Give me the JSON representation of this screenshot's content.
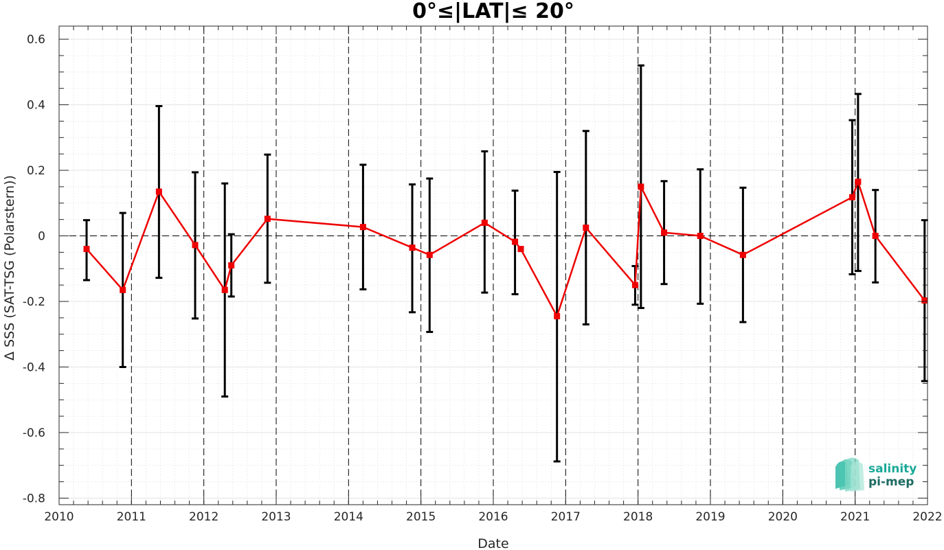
{
  "chart_data": {
    "type": "line",
    "title": "0°≤|LAT|≤ 20°",
    "xlabel": "Date",
    "ylabel": "Δ SSS (SAT-TSG (Polarstern))",
    "xlim": [
      2010,
      2022
    ],
    "ylim": [
      -0.82,
      0.64
    ],
    "x_ticks": [
      2010,
      2011,
      2012,
      2013,
      2014,
      2015,
      2016,
      2017,
      2018,
      2019,
      2020,
      2021,
      2022
    ],
    "y_ticks": [
      -0.8,
      -0.6,
      -0.4,
      -0.2,
      0,
      0.2,
      0.4,
      0.6
    ],
    "y_tick_labels": [
      "-0.8",
      "-0.6",
      "-0.4",
      "-0.2",
      "0",
      "0.2",
      "0.4",
      "0.6"
    ],
    "grid": true,
    "zero_line": true,
    "vertical_year_lines": true,
    "series": [
      {
        "color": "#ee0000",
        "marker": "square",
        "errorbar_color": "#000000",
        "points": [
          {
            "x": 2010.38,
            "y": -0.04,
            "lo": -0.135,
            "hi": 0.048
          },
          {
            "x": 2010.88,
            "y": -0.165,
            "lo": -0.4,
            "hi": 0.07
          },
          {
            "x": 2011.38,
            "y": 0.135,
            "lo": -0.128,
            "hi": 0.396
          },
          {
            "x": 2011.88,
            "y": -0.028,
            "lo": -0.252,
            "hi": 0.194
          },
          {
            "x": 2012.29,
            "y": -0.165,
            "lo": -0.49,
            "hi": 0.16
          },
          {
            "x": 2012.38,
            "y": -0.09,
            "lo": -0.185,
            "hi": 0.005
          },
          {
            "x": 2012.88,
            "y": 0.052,
            "lo": -0.143,
            "hi": 0.248
          },
          {
            "x": 2014.2,
            "y": 0.027,
            "lo": -0.163,
            "hi": 0.217
          },
          {
            "x": 2014.88,
            "y": -0.036,
            "lo": -0.233,
            "hi": 0.157
          },
          {
            "x": 2015.12,
            "y": -0.058,
            "lo": -0.293,
            "hi": 0.175
          },
          {
            "x": 2015.88,
            "y": 0.04,
            "lo": -0.173,
            "hi": 0.258
          },
          {
            "x": 2016.3,
            "y": -0.018,
            "lo": -0.178,
            "hi": 0.138
          },
          {
            "x": 2016.38,
            "y": -0.04,
            "lo": -0.04,
            "hi": -0.04
          },
          {
            "x": 2016.88,
            "y": -0.245,
            "lo": -0.688,
            "hi": 0.195
          },
          {
            "x": 2017.28,
            "y": 0.025,
            "lo": -0.27,
            "hi": 0.32
          },
          {
            "x": 2017.96,
            "y": -0.15,
            "lo": -0.21,
            "hi": -0.092
          },
          {
            "x": 2018.04,
            "y": 0.15,
            "lo": -0.22,
            "hi": 0.52
          },
          {
            "x": 2018.36,
            "y": 0.01,
            "lo": -0.147,
            "hi": 0.167
          },
          {
            "x": 2018.86,
            "y": 0.0,
            "lo": -0.207,
            "hi": 0.203
          },
          {
            "x": 2019.45,
            "y": -0.058,
            "lo": -0.263,
            "hi": 0.147
          },
          {
            "x": 2020.96,
            "y": 0.118,
            "lo": -0.117,
            "hi": 0.353
          },
          {
            "x": 2021.04,
            "y": 0.165,
            "lo": -0.107,
            "hi": 0.433
          },
          {
            "x": 2021.28,
            "y": 0.0,
            "lo": -0.142,
            "hi": 0.14
          },
          {
            "x": 2021.96,
            "y": -0.197,
            "lo": -0.443,
            "hi": 0.048
          }
        ]
      }
    ]
  },
  "logo": {
    "line1": "salinity",
    "line2": "pi-mep",
    "color1": "#1aa898",
    "color2": "#1e6b63"
  }
}
